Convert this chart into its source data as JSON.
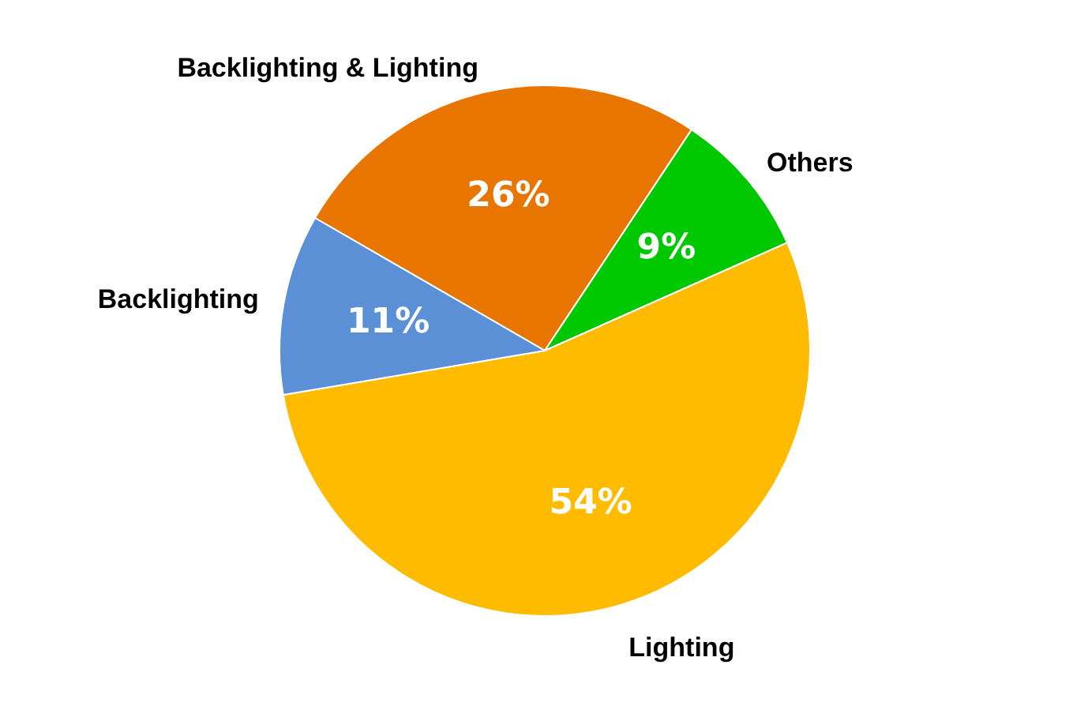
{
  "chart_data": {
    "type": "pie",
    "categories": [
      "Backlighting & Lighting",
      "Others",
      "Lighting",
      "Backlighting"
    ],
    "values": [
      26,
      9,
      54,
      11
    ],
    "colors": [
      "#e87500",
      "#00c800",
      "#ffbb00",
      "#5b8fd6"
    ],
    "value_labels": [
      "26%",
      "9%",
      "54%",
      "11%"
    ]
  }
}
